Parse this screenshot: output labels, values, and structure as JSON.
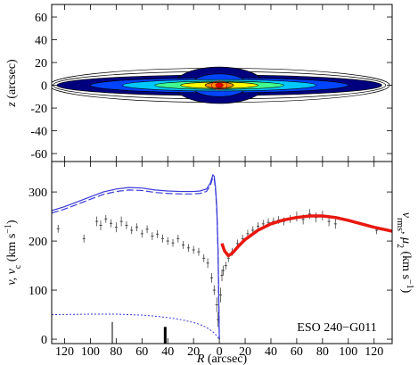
{
  "chart_data": [
    {
      "type": "contour",
      "ylabel": [
        "z",
        " (arcsec)"
      ],
      "xlim": [
        -130,
        134
      ],
      "ylim": [
        -67,
        71
      ],
      "xticks": [
        -120,
        -100,
        -80,
        -60,
        -40,
        -20,
        0,
        20,
        40,
        60,
        80,
        100,
        120
      ],
      "yticks": [
        -60,
        -40,
        -20,
        0,
        20,
        40,
        60
      ],
      "contours": [
        {
          "a": 132,
          "b": 15,
          "color": "none"
        },
        {
          "a": 129,
          "b": 12,
          "color": "none"
        },
        {
          "a": 126,
          "b": 9,
          "color": "#00007f"
        },
        {
          "a": 35,
          "b": 16,
          "color": "#00007f"
        },
        {
          "a": 100,
          "b": 6.5,
          "color": "#0044ff"
        },
        {
          "a": 22,
          "b": 10,
          "color": "#0044ff"
        },
        {
          "a": 75,
          "b": 5,
          "color": "#00c8ff"
        },
        {
          "a": 50,
          "b": 3.6,
          "color": "#40ff90"
        },
        {
          "a": 30,
          "b": 2.8,
          "color": "#ffff00"
        },
        {
          "a": 11,
          "b": 2.6,
          "color": "#ff9000"
        },
        {
          "a": 6,
          "b": 3.8,
          "color": "none"
        },
        {
          "a": 3,
          "b": 2,
          "color": "#e00000"
        }
      ]
    },
    {
      "type": "line",
      "ylabel": [
        "v, v",
        "c",
        " (km s",
        "−1",
        ")"
      ],
      "y2label": [
        "v",
        "rms",
        ", μ",
        "2",
        " (km s",
        "−1",
        ")"
      ],
      "xlabel": [
        "R",
        " (arcsec)"
      ],
      "annotation": "ESO 240−G011",
      "xlim": [
        -130,
        134
      ],
      "ylim": [
        -9,
        362
      ],
      "xticks": [
        {
          "value": -120,
          "label": "120"
        },
        {
          "value": -100,
          "label": "100"
        },
        {
          "value": -80,
          "label": "80"
        },
        {
          "value": -60,
          "label": "60"
        },
        {
          "value": -40,
          "label": "40"
        },
        {
          "value": -20,
          "label": "20"
        },
        0,
        20,
        40,
        60,
        80,
        100,
        120
      ],
      "yticks": [
        0,
        100,
        200,
        300
      ],
      "series": [
        {
          "style": "solid",
          "color": "#3a3ad8",
          "x": [
            -130,
            -120,
            -110,
            -100,
            -90,
            -80,
            -70,
            -60,
            -50,
            -40,
            -30,
            -20,
            -15,
            -10,
            -7,
            -5,
            -4,
            -3,
            -2,
            -1,
            0
          ],
          "values": [
            262,
            270,
            280,
            290,
            300,
            306,
            309,
            308,
            304,
            302,
            301,
            301,
            302,
            306,
            318,
            335,
            332,
            310,
            270,
            180,
            0
          ]
        },
        {
          "style": "dashed",
          "color": "#3a3ad8",
          "x": [
            -130,
            -120,
            -110,
            -100,
            -90,
            -80,
            -70,
            -60,
            -50,
            -40,
            -30,
            -20,
            -15,
            -10,
            -7,
            -5,
            -4,
            -3,
            -2,
            -1,
            0
          ],
          "values": [
            257,
            265,
            275,
            285,
            295,
            301,
            304,
            303,
            299,
            297,
            296,
            296,
            297,
            301,
            313,
            330,
            327,
            305,
            265,
            175,
            0
          ]
        },
        {
          "style": "dotted",
          "color": "#3a3ad8",
          "x": [
            -130,
            -100,
            -80,
            -60,
            -50,
            -40,
            -30,
            -20,
            -15,
            -10,
            -5,
            -2,
            0
          ],
          "values": [
            50,
            51,
            51,
            49,
            47,
            44,
            40,
            34,
            30,
            24,
            15,
            7,
            0
          ]
        },
        {
          "style": "thick",
          "color": "#e8180f",
          "x": [
            2,
            4,
            7,
            10,
            15,
            20,
            30,
            40,
            50,
            60,
            70,
            80,
            90,
            100,
            110,
            120,
            134
          ],
          "values": [
            195,
            180,
            170,
            175,
            190,
            203,
            222,
            235,
            243,
            248,
            251,
            251,
            248,
            242,
            235,
            228,
            220
          ]
        }
      ],
      "points": {
        "color": "#444444",
        "x": [
          -125,
          -105,
          -95,
          -92,
          -88,
          -84,
          -80,
          -76,
          -72,
          -68,
          -64,
          -60,
          -56,
          -52,
          -48,
          -44,
          -40,
          -36,
          -32,
          -28,
          -24,
          -20,
          -16,
          -12,
          -9,
          -6,
          -4,
          -2,
          -1,
          1,
          2,
          3,
          5,
          7,
          10,
          14,
          18,
          22,
          26,
          30,
          34,
          38,
          42,
          46,
          50,
          55,
          60,
          65,
          70,
          75,
          80,
          85,
          90,
          122
        ],
        "values": [
          225,
          205,
          240,
          232,
          245,
          236,
          228,
          240,
          232,
          222,
          228,
          215,
          224,
          210,
          214,
          205,
          200,
          196,
          205,
          192,
          186,
          182,
          178,
          165,
          155,
          125,
          100,
          70,
          40,
          90,
          130,
          140,
          150,
          165,
          178,
          195,
          205,
          215,
          222,
          230,
          235,
          238,
          240,
          243,
          240,
          245,
          250,
          244,
          255,
          248,
          252,
          240,
          235,
          222
        ],
        "errors": [
          8,
          8,
          10,
          10,
          8,
          8,
          10,
          10,
          8,
          8,
          8,
          8,
          8,
          8,
          8,
          8,
          8,
          8,
          8,
          8,
          8,
          8,
          8,
          8,
          10,
          10,
          10,
          15,
          15,
          15,
          12,
          10,
          8,
          8,
          8,
          8,
          8,
          8,
          8,
          8,
          8,
          8,
          8,
          8,
          8,
          8,
          10,
          10,
          10,
          10,
          10,
          10,
          10,
          8
        ]
      },
      "markers": {
        "x": [
          -83,
          -42
        ],
        "values": [
          35,
          25
        ]
      }
    }
  ]
}
